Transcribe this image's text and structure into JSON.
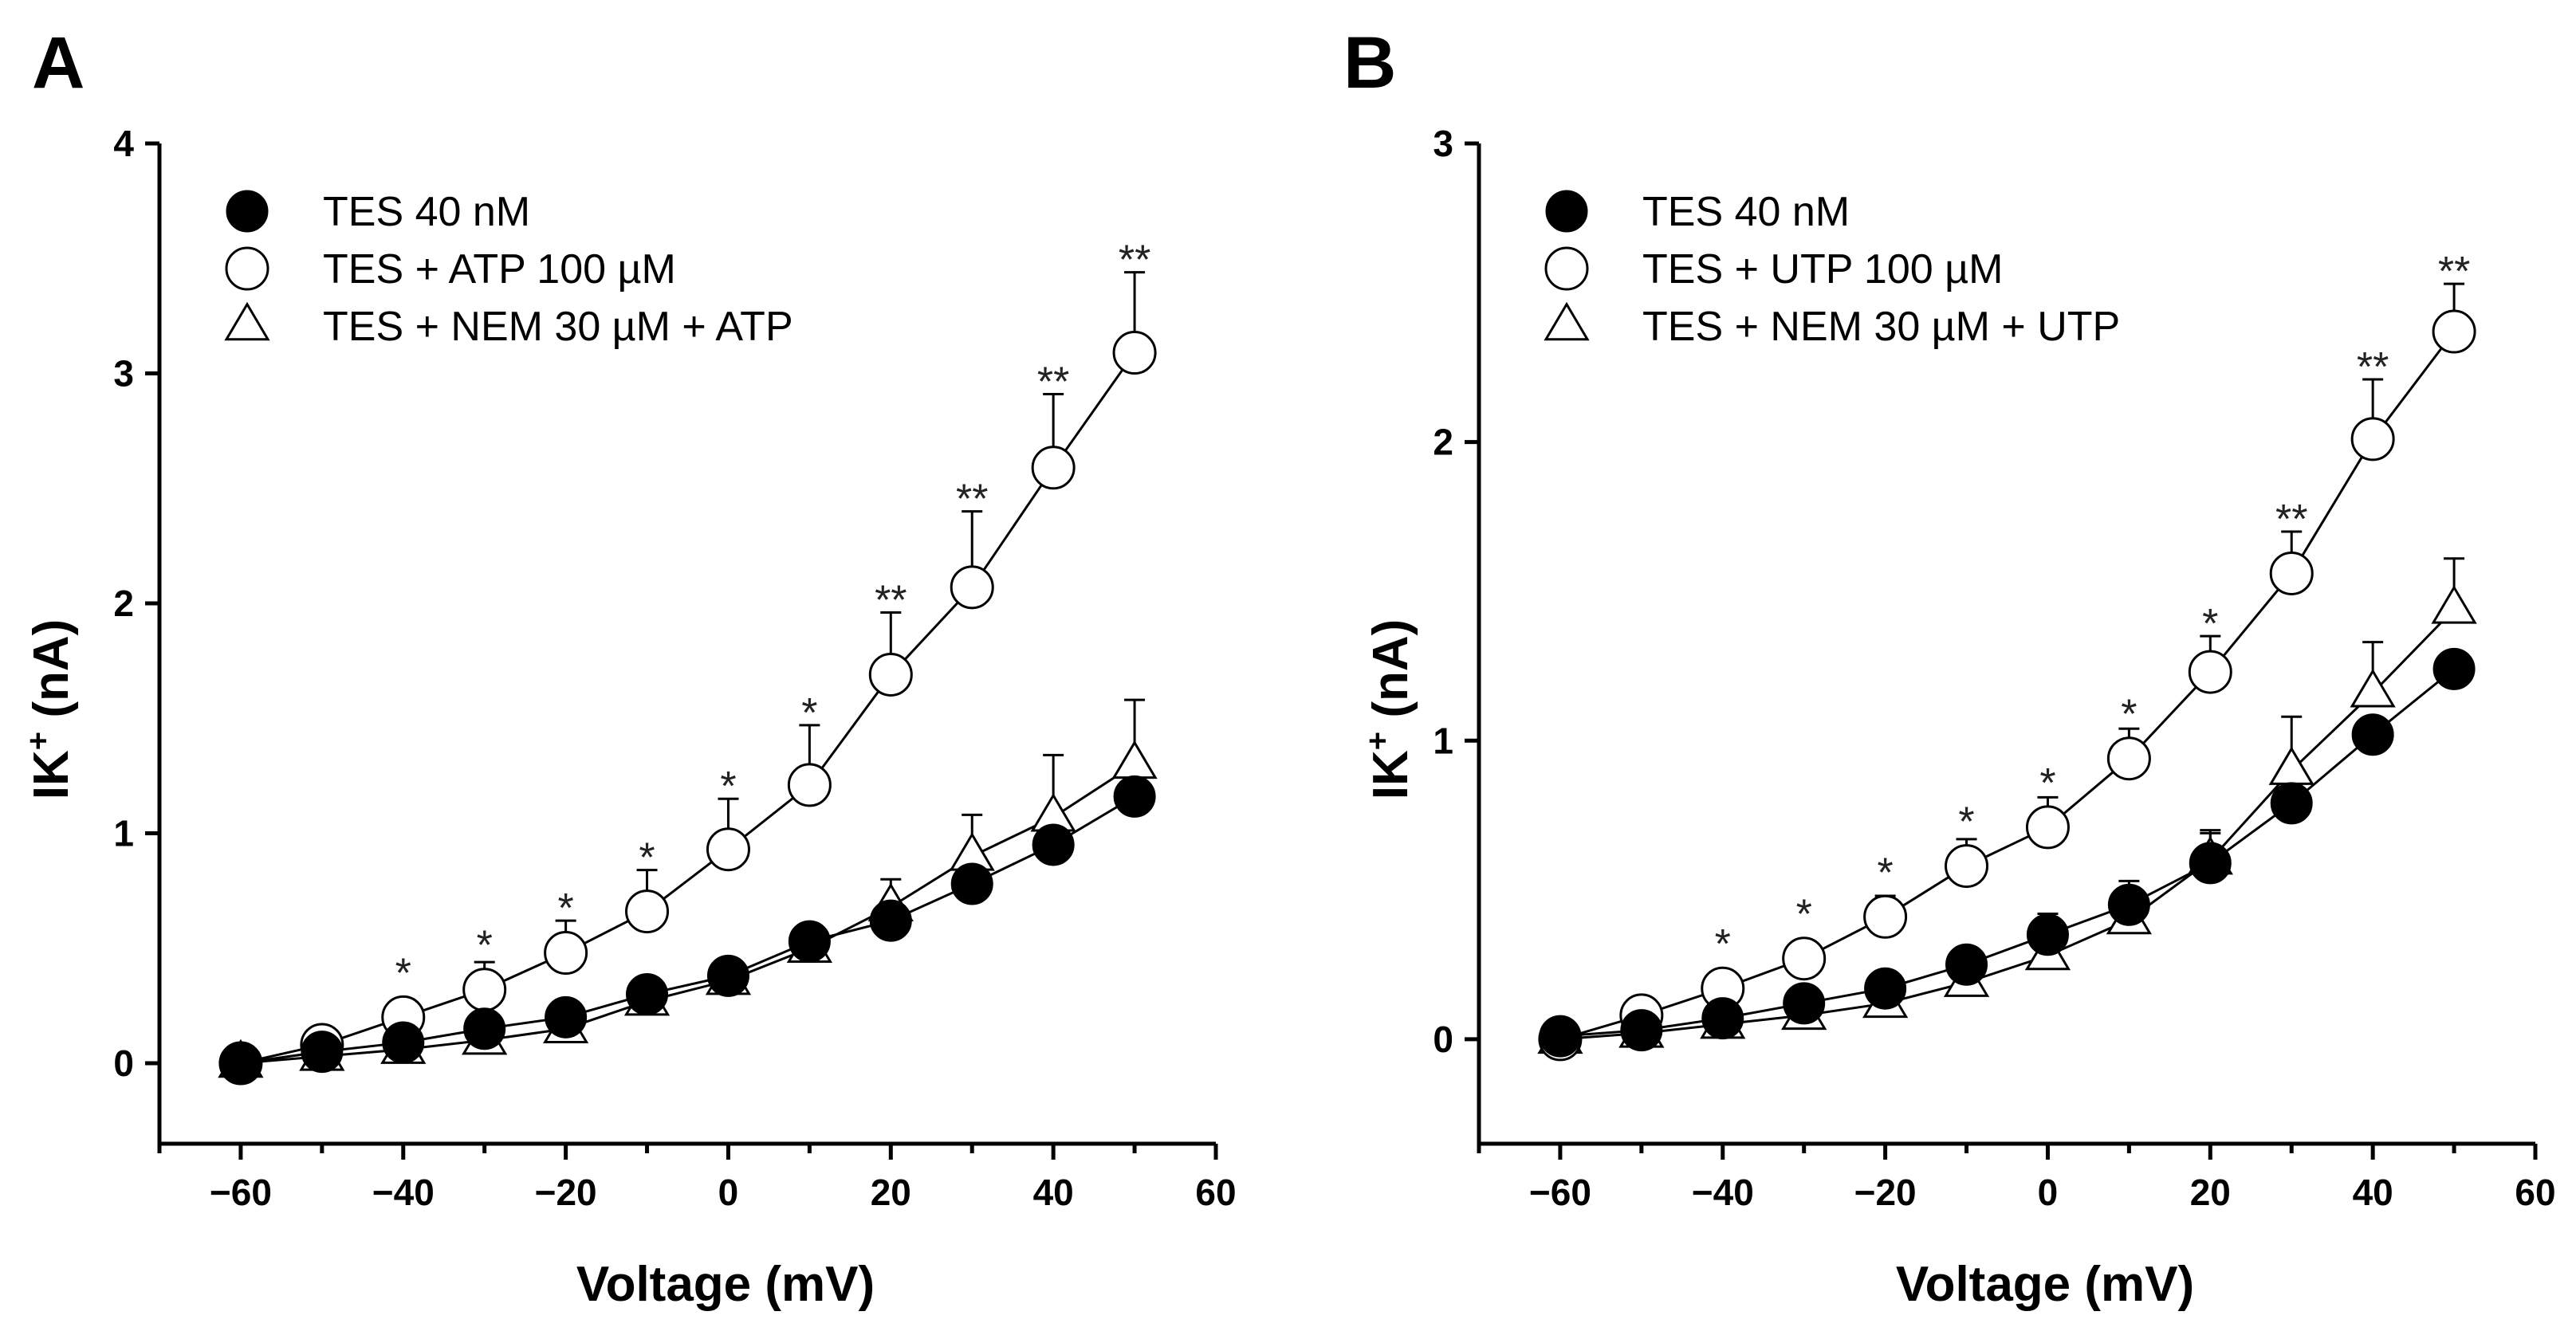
{
  "chart_data": [
    {
      "panel": "A",
      "type": "line",
      "xlabel": "Voltage (mV)",
      "ylabel": "IK+ (nA)",
      "ylabel_main": "IK",
      "ylabel_sup": "+",
      "ylabel_unit": " (nA)",
      "xlim": [
        -70,
        60
      ],
      "ylim": [
        -0.35,
        4
      ],
      "xticks": [
        -60,
        -40,
        -20,
        0,
        20,
        40,
        60
      ],
      "xtick_labels": [
        "−60",
        "−40",
        "−20",
        "0",
        "20",
        "40",
        "60"
      ],
      "yticks": [
        0,
        1,
        2,
        3,
        4
      ],
      "ytick_labels": [
        "0",
        "1",
        "2",
        "3",
        "4"
      ],
      "x": [
        -60,
        -50,
        -40,
        -30,
        -20,
        -10,
        0,
        10,
        20,
        30,
        40,
        50
      ],
      "series": [
        {
          "name": "TES 40 nM",
          "marker": "filled-circle",
          "values": [
            0.0,
            0.05,
            0.09,
            0.15,
            0.2,
            0.3,
            0.38,
            0.53,
            0.62,
            0.78,
            0.95,
            1.16
          ],
          "errors": [
            0,
            0,
            0,
            0,
            0,
            0,
            0,
            0,
            0,
            0,
            0,
            0
          ]
        },
        {
          "name": "TES + ATP 100 µM",
          "marker": "open-circle",
          "values": [
            0.0,
            0.08,
            0.2,
            0.32,
            0.48,
            0.66,
            0.93,
            1.21,
            1.69,
            2.07,
            2.59,
            3.09
          ],
          "errors": [
            0,
            0,
            0,
            0.12,
            0.14,
            0.18,
            0.22,
            0.26,
            0.27,
            0.33,
            0.32,
            0.35
          ]
        },
        {
          "name": "TES + NEM 30 µM + ATP",
          "marker": "open-triangle",
          "values": [
            0.0,
            0.03,
            0.06,
            0.1,
            0.15,
            0.27,
            0.36,
            0.5,
            0.68,
            0.9,
            1.07,
            1.3
          ],
          "errors": [
            0,
            0,
            0,
            0,
            0,
            0,
            0,
            0.08,
            0.12,
            0.18,
            0.27,
            0.28
          ]
        }
      ],
      "significance": [
        {
          "x": -40,
          "label": "*"
        },
        {
          "x": -30,
          "label": "*"
        },
        {
          "x": -20,
          "label": "*"
        },
        {
          "x": -10,
          "label": "*"
        },
        {
          "x": 0,
          "label": "*"
        },
        {
          "x": 10,
          "label": "*"
        },
        {
          "x": 20,
          "label": "**"
        },
        {
          "x": 30,
          "label": "**"
        },
        {
          "x": 40,
          "label": "**"
        },
        {
          "x": 50,
          "label": "**"
        }
      ]
    },
    {
      "panel": "B",
      "type": "line",
      "xlabel": "Voltage (mV)",
      "ylabel": "IK+ (nA)",
      "ylabel_main": "IK",
      "ylabel_sup": "+",
      "ylabel_unit": " (nA)",
      "xlim": [
        -70,
        60
      ],
      "ylim": [
        -0.35,
        3
      ],
      "xticks": [
        -60,
        -40,
        -20,
        0,
        20,
        40,
        60
      ],
      "xtick_labels": [
        "−60",
        "−40",
        "−20",
        "0",
        "20",
        "40",
        "60"
      ],
      "yticks": [
        0,
        1,
        2,
        3
      ],
      "ytick_labels": [
        "0",
        "1",
        "2",
        "3"
      ],
      "x": [
        -60,
        -50,
        -40,
        -30,
        -20,
        -10,
        0,
        10,
        20,
        30,
        40,
        50
      ],
      "series": [
        {
          "name": "TES 40 nM",
          "marker": "filled-circle",
          "values": [
            0.01,
            0.03,
            0.07,
            0.12,
            0.17,
            0.25,
            0.35,
            0.45,
            0.59,
            0.79,
            1.02,
            1.24
          ],
          "errors": [
            0,
            0,
            0,
            0,
            0,
            0,
            0.07,
            0.08,
            0.1,
            0,
            0,
            0
          ]
        },
        {
          "name": "TES + UTP 100 µM",
          "marker": "open-circle",
          "values": [
            0.0,
            0.08,
            0.17,
            0.27,
            0.41,
            0.58,
            0.71,
            0.94,
            1.23,
            1.56,
            2.01,
            2.37
          ],
          "errors": [
            0,
            0,
            0,
            0,
            0.07,
            0.09,
            0.1,
            0.1,
            0.12,
            0.14,
            0.2,
            0.16
          ]
        },
        {
          "name": "TES + NEM 30 µM + UTP",
          "marker": "open-triangle",
          "values": [
            0.0,
            0.02,
            0.05,
            0.08,
            0.12,
            0.19,
            0.28,
            0.4,
            0.6,
            0.9,
            1.16,
            1.44
          ],
          "errors": [
            0,
            0,
            0,
            0,
            0,
            0,
            0,
            0.1,
            0.1,
            0.18,
            0.17,
            0.17
          ]
        }
      ],
      "significance": [
        {
          "x": -40,
          "label": "*"
        },
        {
          "x": -30,
          "label": "*"
        },
        {
          "x": -20,
          "label": "*"
        },
        {
          "x": -10,
          "label": "*"
        },
        {
          "x": 0,
          "label": "*"
        },
        {
          "x": 10,
          "label": "*"
        },
        {
          "x": 20,
          "label": "*"
        },
        {
          "x": 30,
          "label": "**"
        },
        {
          "x": 40,
          "label": "**"
        },
        {
          "x": 50,
          "label": "**"
        }
      ]
    }
  ]
}
